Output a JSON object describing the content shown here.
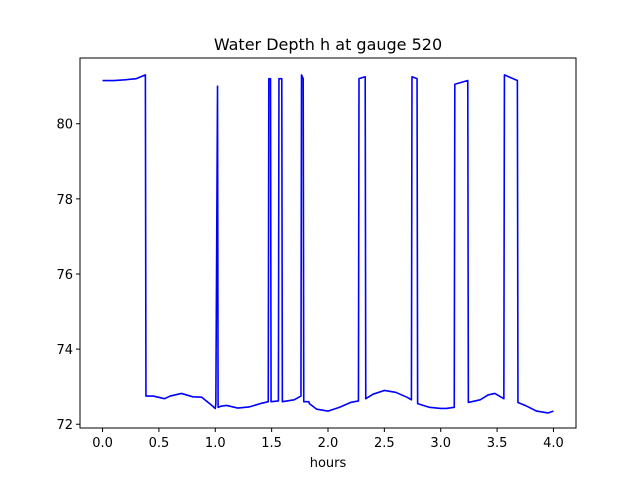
{
  "chart_data": {
    "type": "line",
    "title": "Water Depth h at gauge 520",
    "xlabel": "hours",
    "ylabel": "",
    "xlim": [
      -0.2,
      4.2
    ],
    "ylim": [
      71.9,
      81.75
    ],
    "xticks": [
      0.0,
      0.5,
      1.0,
      1.5,
      2.0,
      2.5,
      3.0,
      3.5,
      4.0
    ],
    "xtick_labels": [
      "0.0",
      "0.5",
      "1.0",
      "1.5",
      "2.0",
      "2.5",
      "3.0",
      "3.5",
      "4.0"
    ],
    "yticks": [
      72,
      74,
      76,
      78,
      80
    ],
    "ytick_labels": [
      "72",
      "74",
      "76",
      "78",
      "80"
    ],
    "grid": false,
    "series": [
      {
        "color": "#0000ff",
        "x": [
          0.0,
          0.1,
          0.2,
          0.3,
          0.38,
          0.385,
          0.45,
          0.55,
          0.6,
          0.7,
          0.8,
          0.88,
          0.95,
          1.0,
          1.005,
          1.02,
          1.025,
          1.05,
          1.1,
          1.2,
          1.3,
          1.4,
          1.47,
          1.475,
          1.49,
          1.495,
          1.56,
          1.565,
          1.59,
          1.595,
          1.7,
          1.76,
          1.765,
          1.78,
          1.785,
          1.83,
          1.835,
          1.9,
          2.0,
          2.1,
          2.2,
          2.27,
          2.275,
          2.33,
          2.335,
          2.4,
          2.5,
          2.6,
          2.7,
          2.74,
          2.745,
          2.79,
          2.795,
          2.9,
          3.0,
          3.05,
          3.12,
          3.125,
          3.24,
          3.245,
          3.35,
          3.42,
          3.48,
          3.56,
          3.565,
          3.68,
          3.685,
          3.75,
          3.85,
          3.95,
          4.0
        ],
        "values": [
          81.15,
          81.15,
          81.17,
          81.2,
          81.3,
          72.75,
          72.75,
          72.68,
          72.75,
          72.82,
          72.73,
          72.72,
          72.55,
          72.42,
          72.55,
          81.0,
          72.45,
          72.48,
          72.5,
          72.43,
          72.46,
          72.55,
          72.6,
          81.2,
          81.2,
          72.6,
          72.62,
          81.2,
          81.2,
          72.6,
          72.65,
          72.75,
          81.3,
          81.2,
          72.6,
          72.6,
          72.55,
          72.4,
          72.35,
          72.45,
          72.58,
          72.62,
          81.2,
          81.25,
          72.68,
          72.8,
          72.9,
          72.85,
          72.72,
          72.65,
          81.25,
          81.2,
          72.55,
          72.45,
          72.42,
          72.42,
          72.45,
          81.05,
          81.15,
          72.58,
          72.65,
          72.78,
          72.82,
          72.68,
          81.3,
          81.15,
          72.58,
          72.5,
          72.35,
          72.3,
          72.35
        ]
      }
    ]
  }
}
